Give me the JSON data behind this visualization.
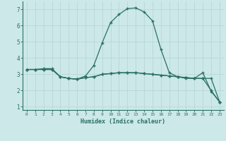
{
  "xlabel": "Humidex (Indice chaleur)",
  "ylabel": "",
  "xlim": [
    -0.5,
    23.5
  ],
  "ylim": [
    0.8,
    7.5
  ],
  "yticks": [
    1,
    2,
    3,
    4,
    5,
    6,
    7
  ],
  "xticks": [
    0,
    1,
    2,
    3,
    4,
    5,
    6,
    7,
    8,
    9,
    10,
    11,
    12,
    13,
    14,
    15,
    16,
    17,
    18,
    19,
    20,
    21,
    22,
    23
  ],
  "background_color": "#cce8e8",
  "grid_color": "#b8d8d8",
  "line_color": "#2a7060",
  "series1_x": [
    0,
    1,
    2,
    3,
    4,
    5,
    6,
    7,
    8,
    9,
    10,
    11,
    12,
    13,
    14,
    15,
    16,
    17,
    18,
    19,
    20,
    21,
    22,
    23
  ],
  "series1_y": [
    3.3,
    3.3,
    3.35,
    3.35,
    2.85,
    2.75,
    2.7,
    2.9,
    3.55,
    4.95,
    6.2,
    6.7,
    7.05,
    7.1,
    6.85,
    6.3,
    4.55,
    3.1,
    2.85,
    2.75,
    2.75,
    3.1,
    1.95,
    1.3
  ],
  "series2_x": [
    0,
    1,
    2,
    3,
    4,
    5,
    6,
    7,
    8,
    9,
    10,
    11,
    12,
    13,
    14,
    15,
    16,
    17,
    18,
    19,
    20,
    21,
    22,
    23
  ],
  "series2_y": [
    3.3,
    3.3,
    3.3,
    3.3,
    2.85,
    2.75,
    2.7,
    2.8,
    2.85,
    3.0,
    3.05,
    3.1,
    3.1,
    3.1,
    3.05,
    3.0,
    2.95,
    2.9,
    2.85,
    2.8,
    2.75,
    2.75,
    2.75,
    1.3
  ],
  "series3_x": [
    0,
    1,
    2,
    3,
    4,
    5,
    6,
    7,
    8,
    9,
    10,
    11,
    12,
    13,
    14,
    15,
    16,
    17,
    18,
    19,
    20,
    21,
    22,
    23
  ],
  "series3_y": [
    3.3,
    3.3,
    3.3,
    3.3,
    2.85,
    2.75,
    2.7,
    2.8,
    2.85,
    3.0,
    3.05,
    3.1,
    3.1,
    3.1,
    3.05,
    3.0,
    2.95,
    2.9,
    2.85,
    2.8,
    2.75,
    2.75,
    2.0,
    1.3
  ]
}
